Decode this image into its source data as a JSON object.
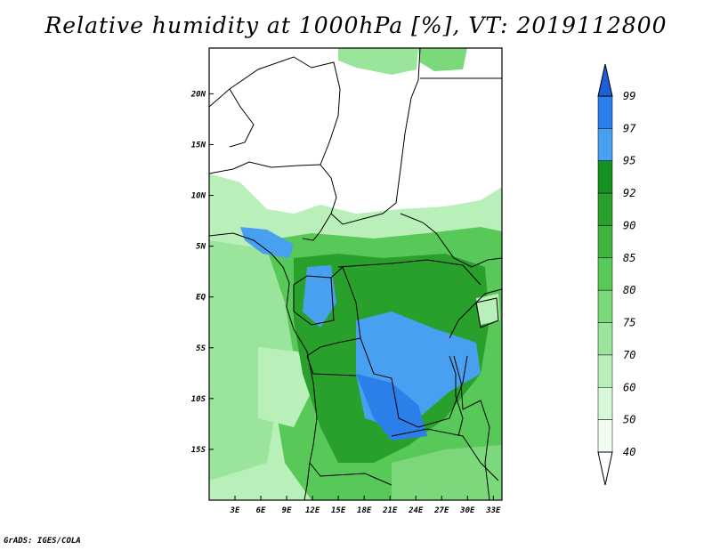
{
  "title": "Relative humidity at 1000hPa [%], VT: 2019112800",
  "credit": "GrADS: IGES/COLA",
  "map": {
    "x_ticks": [
      "3E",
      "6E",
      "9E",
      "12E",
      "15E",
      "18E",
      "21E",
      "24E",
      "27E",
      "30E",
      "33E"
    ],
    "y_ticks": [
      "20N",
      "15N",
      "10N",
      "5N",
      "EQ",
      "5S",
      "10S",
      "15S"
    ],
    "lon_range": [
      0,
      34
    ],
    "lat_range": [
      -20,
      24.5
    ]
  },
  "colorbar": {
    "levels": [
      "99",
      "97",
      "95",
      "92",
      "90",
      "85",
      "80",
      "75",
      "70",
      "60",
      "50",
      "40"
    ],
    "colors": [
      "#1e5fd6",
      "#2b7fe8",
      "#4aa0f0",
      "#15901e",
      "#2aa02c",
      "#3fb43f",
      "#58c858",
      "#7bd87b",
      "#9be49b",
      "#b9efb9",
      "#d8f8d8",
      "#f2fdf2"
    ],
    "top_arrow_color": "#1e5fd6",
    "bottom_arrow_color": "#ffffff"
  }
}
